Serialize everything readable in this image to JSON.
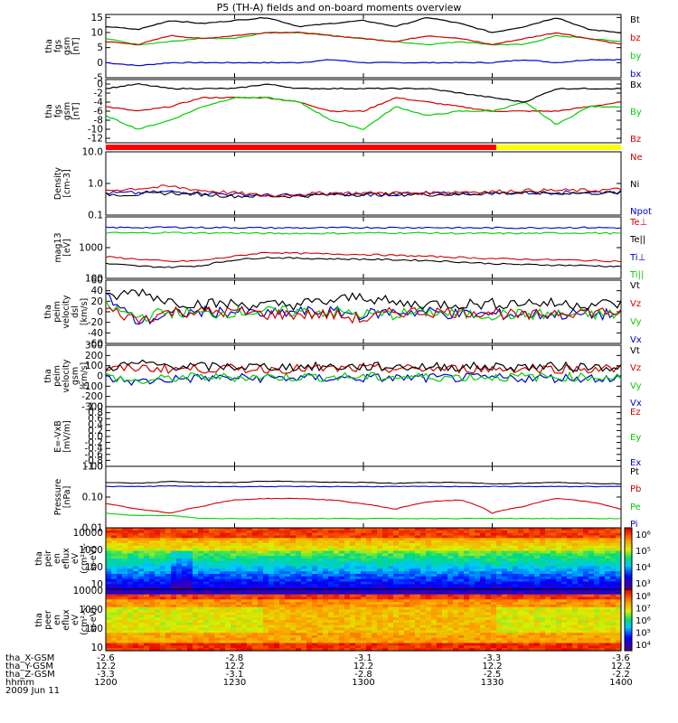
{
  "title": "P5 (TH-A) fields and on-board moments overview",
  "colors": {
    "black": "#000000",
    "red": "#d00000",
    "green": "#00d000",
    "blue": "#0000d0",
    "yellow": "#ffff00",
    "bar_red": "#ff0000"
  },
  "panels": [
    {
      "id": "fgs1",
      "ylabel": [
        "tha",
        "fgs",
        "gsm",
        "[nT]"
      ],
      "ylim": [
        -5,
        16
      ],
      "log": false,
      "ticks": [
        "15",
        "10",
        "5",
        "0",
        "-5"
      ],
      "tickvals": [
        15,
        10,
        5,
        0,
        -5
      ],
      "legend": [
        {
          "text": "Bt",
          "color": "#000000"
        },
        {
          "text": "bz",
          "color": "#d00000"
        },
        {
          "text": "by",
          "color": "#00d000"
        },
        {
          "text": "bx",
          "color": "#0000d0"
        }
      ]
    },
    {
      "id": "fgs2",
      "ylabel": [
        "tha",
        "fgs",
        "gsm",
        "[nT]"
      ],
      "ylim": [
        -13,
        1
      ],
      "log": false,
      "ticks": [
        "0",
        "-2",
        "-4",
        "-6",
        "-8",
        "-10",
        "-12"
      ],
      "tickvals": [
        0,
        -2,
        -4,
        -6,
        -8,
        -10,
        -12
      ],
      "legend": [
        {
          "text": "Bx",
          "color": "#000000"
        },
        {
          "text": "By",
          "color": "#00d000"
        },
        {
          "text": "Bz",
          "color": "#d00000"
        }
      ]
    },
    {
      "id": "density",
      "ylabel": [
        "Density",
        "[cm-3]"
      ],
      "ylim": [
        0.1,
        10
      ],
      "log": true,
      "ticks": [
        "10.0",
        "1.0",
        "0.1"
      ],
      "tickvals": [
        10,
        1,
        0.1
      ],
      "legend": [
        {
          "text": "Ne",
          "color": "#d00000"
        },
        {
          "text": "Ni",
          "color": "#000000"
        },
        {
          "text": "Npot",
          "color": "#0000d0"
        }
      ]
    },
    {
      "id": "temp",
      "ylabel": [
        "mag13",
        "[eV]"
      ],
      "ylim": [
        100,
        10000
      ],
      "log": true,
      "ticks": [
        "1000",
        "100"
      ],
      "tickvals": [
        1000,
        100
      ],
      "legend": [
        {
          "text": "Te⊥",
          "color": "#d00000"
        },
        {
          "text": "Te||",
          "color": "#000000"
        },
        {
          "text": "Ti⊥",
          "color": "#0000d0"
        },
        {
          "text": "Ti||",
          "color": "#00d000"
        }
      ]
    },
    {
      "id": "vel1",
      "ylabel": [
        "tha",
        "peim",
        "velocity",
        "dsl",
        "[km/s]"
      ],
      "ylim": [
        -60,
        60
      ],
      "log": false,
      "ticks": [
        "60",
        "40",
        "20",
        "0",
        "-20",
        "-40",
        "-60"
      ],
      "tickvals": [
        60,
        40,
        20,
        0,
        -20,
        -40,
        -60
      ],
      "legend": [
        {
          "text": "Vt",
          "color": "#000000"
        },
        {
          "text": "Vz",
          "color": "#d00000"
        },
        {
          "text": "Vy",
          "color": "#00d000"
        },
        {
          "text": "Vx",
          "color": "#0000d0"
        }
      ]
    },
    {
      "id": "vel2",
      "ylabel": [
        "tha",
        "peim",
        "velocity",
        "gsm",
        "[km/s]"
      ],
      "ylim": [
        -300,
        300
      ],
      "log": false,
      "ticks": [
        "300",
        "200",
        "100",
        "0",
        "-100",
        "-200",
        "-300"
      ],
      "tickvals": [
        300,
        200,
        100,
        0,
        -100,
        -200,
        -300
      ],
      "legend": [
        {
          "text": "Vt",
          "color": "#000000"
        },
        {
          "text": "Vz",
          "color": "#d00000"
        },
        {
          "text": "Vy",
          "color": "#00d000"
        },
        {
          "text": "Vx",
          "color": "#0000d0"
        }
      ]
    },
    {
      "id": "efield",
      "ylabel": [
        "E=-VxB",
        "[mV/m]"
      ],
      "ylim": [
        -1,
        1
      ],
      "log": false,
      "ticks": [
        "1.0",
        "0.8",
        "0.6",
        "0.4",
        "0.2",
        "0.0",
        "-0.2",
        "-0.4",
        "-0.6",
        "-0.8",
        "-1.0"
      ],
      "tickvals": [
        1,
        0.8,
        0.6,
        0.4,
        0.2,
        0,
        -0.2,
        -0.4,
        -0.6,
        -0.8,
        -1
      ],
      "legend": [
        {
          "text": "Ez",
          "color": "#d00000"
        },
        {
          "text": "Ey",
          "color": "#00d000"
        },
        {
          "text": "Ex",
          "color": "#0000d0"
        }
      ]
    },
    {
      "id": "pressure",
      "ylabel": [
        "Pressure",
        "[nPa]"
      ],
      "ylim": [
        0.01,
        1
      ],
      "log": true,
      "ticks": [
        "1.00",
        "0.10",
        "0.01"
      ],
      "tickvals": [
        1,
        0.1,
        0.01
      ],
      "legend": [
        {
          "text": "Pt",
          "color": "#000000"
        },
        {
          "text": "Pb",
          "color": "#d00000"
        },
        {
          "text": "Pe",
          "color": "#00d000"
        },
        {
          "text": "Pi",
          "color": "#0000d0"
        }
      ]
    },
    {
      "id": "ion_spec",
      "ylabel": [
        "tha",
        "peir",
        "en",
        "eflux",
        "eV",
        "(cm²-s-",
        "sr-eV)"
      ],
      "ylim": [
        5,
        20000
      ],
      "log": true,
      "ticks": [
        "10000",
        "1000",
        "100",
        "10"
      ],
      "tickvals": [
        10000,
        1000,
        100,
        10
      ],
      "cbar": [
        "10⁶",
        "10⁵",
        "10⁴",
        "10³"
      ]
    },
    {
      "id": "ele_spec",
      "ylabel": [
        "tha",
        "peer",
        "en",
        "eflux",
        "eV",
        "(cm²-s-",
        "sr-eV)"
      ],
      "ylim": [
        7,
        12000
      ],
      "log": true,
      "ticks": [
        "10000",
        "1000",
        "100",
        "10"
      ],
      "tickvals": [
        10000,
        1000,
        100,
        10
      ],
      "cbar": [
        "10⁸",
        "10⁷",
        "10⁶",
        "10⁵",
        "10⁴"
      ]
    }
  ],
  "chart_data": {
    "type": "line",
    "title": "P5 (TH-A) fields and on-board moments overview",
    "xlabel": "hhmm",
    "date": "2009 Jun 11",
    "x_ticks": [
      "1200",
      "1230",
      "1300",
      "1330",
      "1400"
    ],
    "x_range": [
      "1200",
      "1400"
    ],
    "position_rows": [
      {
        "label": "tha_X-GSM",
        "values": [
          "-2.6",
          "-2.8",
          "-3.1",
          "-3.3",
          "-3.6"
        ]
      },
      {
        "label": "tha_Y-GSM",
        "values": [
          "12.2",
          "12.2",
          "12.2",
          "12.2",
          "12.2"
        ]
      },
      {
        "label": "tha_Z-GSM",
        "values": [
          "-3.3",
          "-3.1",
          "-2.8",
          "-2.5",
          "-2.2"
        ]
      }
    ],
    "series_fgs1": [
      {
        "name": "Bt",
        "values": [
          12,
          11,
          14,
          13,
          14,
          15,
          12,
          13,
          14,
          12,
          15,
          13,
          10,
          12,
          15,
          11,
          10
        ]
      },
      {
        "name": "bz",
        "values": [
          7,
          6,
          9,
          8,
          9,
          10,
          10,
          9,
          8,
          7,
          9,
          8,
          6,
          8,
          10,
          8,
          6
        ]
      },
      {
        "name": "by",
        "values": [
          8,
          6,
          7,
          8,
          8,
          10,
          10,
          9,
          8,
          7,
          6,
          7,
          6,
          6,
          9,
          8,
          7
        ]
      },
      {
        "name": "bx",
        "values": [
          0,
          -1,
          0,
          0,
          0,
          0,
          0,
          1,
          0,
          0,
          0,
          0,
          0,
          1,
          0,
          1,
          1
        ]
      }
    ],
    "series_fgs2": [
      {
        "name": "Bx",
        "values": [
          -1,
          0,
          -1,
          -1,
          -1,
          0,
          -1,
          -1,
          -1,
          -1,
          -1,
          -2,
          -3,
          -4,
          -1,
          -1,
          -1
        ]
      },
      {
        "name": "By",
        "values": [
          -7,
          -10,
          -8,
          -5,
          -3,
          -3,
          -4,
          -8,
          -10,
          -5,
          -7,
          -6,
          -6,
          -4,
          -9,
          -5,
          -5
        ]
      },
      {
        "name": "Bz",
        "values": [
          -5,
          -6,
          -5,
          -3,
          -3,
          -3,
          -4,
          -6,
          -6,
          -3,
          -4,
          -5,
          -6,
          -6,
          -6,
          -5,
          -4
        ]
      }
    ],
    "series_density": [
      {
        "name": "Ne",
        "values": [
          0.6,
          0.7,
          0.8,
          0.6,
          0.5,
          0.4,
          0.45,
          0.5,
          0.5,
          0.5,
          0.5,
          0.55,
          0.55,
          0.6,
          0.6,
          0.6,
          0.65
        ]
      },
      {
        "name": "Ni",
        "values": [
          0.45,
          0.45,
          0.5,
          0.45,
          0.4,
          0.4,
          0.4,
          0.45,
          0.45,
          0.45,
          0.45,
          0.45,
          0.5,
          0.5,
          0.5,
          0.5,
          0.5
        ]
      },
      {
        "name": "Npot",
        "values": [
          0.5,
          0.5,
          0.55,
          0.5,
          0.45,
          0.42,
          0.42,
          0.45,
          0.45,
          0.45,
          0.48,
          0.48,
          0.5,
          0.5,
          0.52,
          0.52,
          0.55
        ]
      }
    ],
    "series_temp": [
      {
        "name": "Te⊥",
        "values": [
          500,
          420,
          350,
          380,
          520,
          700,
          650,
          620,
          600,
          560,
          520,
          480,
          440,
          420,
          400,
          380,
          360
        ]
      },
      {
        "name": "Te||",
        "values": [
          300,
          250,
          230,
          260,
          400,
          480,
          450,
          430,
          420,
          400,
          380,
          340,
          300,
          280,
          270,
          260,
          240
        ]
      },
      {
        "name": "Ti⊥",
        "values": [
          4500,
          4500,
          4600,
          4500,
          4500,
          4400,
          4400,
          4400,
          4500,
          4500,
          4500,
          4400,
          4400,
          4400,
          4500,
          4500,
          4400
        ]
      },
      {
        "name": "Ti||",
        "values": [
          3000,
          3000,
          3100,
          3000,
          3000,
          2900,
          2900,
          2900,
          3000,
          3000,
          3000,
          2900,
          2900,
          2900,
          3000,
          3000,
          2900
        ]
      }
    ],
    "series_vel1": [
      {
        "name": "Vt",
        "values": [
          25,
          40,
          20,
          15,
          15,
          12,
          15,
          20,
          30,
          15,
          15,
          15,
          15,
          18,
          15,
          15,
          15
        ]
      },
      {
        "name": "Vz",
        "values": [
          5,
          -15,
          0,
          0,
          0,
          -5,
          -5,
          -5,
          -15,
          0,
          0,
          0,
          0,
          -10,
          0,
          0,
          0
        ]
      },
      {
        "name": "Vy",
        "values": [
          10,
          -10,
          0,
          -5,
          0,
          0,
          0,
          0,
          -5,
          -5,
          0,
          -5,
          -5,
          -5,
          -5,
          -5,
          -5
        ]
      },
      {
        "name": "Vx",
        "values": [
          30,
          -20,
          -5,
          0,
          0,
          -5,
          0,
          0,
          -5,
          0,
          0,
          -5,
          -5,
          -5,
          -5,
          -5,
          -5
        ]
      }
    ],
    "series_vel2": [
      {
        "name": "Vt",
        "values": [
          80,
          120,
          100,
          90,
          90,
          90,
          90,
          90,
          90,
          90,
          90,
          90,
          90,
          90,
          90,
          90,
          90
        ]
      },
      {
        "name": "Vz",
        "values": [
          60,
          80,
          70,
          70,
          70,
          70,
          70,
          70,
          70,
          70,
          70,
          70,
          70,
          70,
          70,
          70,
          70
        ]
      },
      {
        "name": "Vy",
        "values": [
          0,
          -60,
          -20,
          -10,
          -10,
          -10,
          -10,
          -10,
          -10,
          -10,
          -10,
          -10,
          -10,
          -10,
          -10,
          -10,
          -10
        ]
      },
      {
        "name": "Vx",
        "values": [
          -20,
          -60,
          -30,
          -20,
          -20,
          -20,
          -20,
          -20,
          -20,
          -20,
          -20,
          -20,
          -20,
          -20,
          -20,
          -20,
          -20
        ]
      }
    ],
    "series_pressure": [
      {
        "name": "Pt",
        "values": [
          0.3,
          0.28,
          0.32,
          0.3,
          0.3,
          0.33,
          0.32,
          0.3,
          0.3,
          0.28,
          0.3,
          0.3,
          0.27,
          0.28,
          0.3,
          0.28,
          0.27
        ]
      },
      {
        "name": "Pb",
        "values": [
          0.06,
          0.04,
          0.03,
          0.05,
          0.08,
          0.09,
          0.09,
          0.08,
          0.06,
          0.04,
          0.07,
          0.08,
          0.03,
          0.05,
          0.09,
          0.07,
          0.04
        ]
      },
      {
        "name": "Pe",
        "values": [
          0.03,
          0.025,
          0.025,
          0.02,
          0.02,
          0.02,
          0.02,
          0.02,
          0.02,
          0.02,
          0.02,
          0.02,
          0.02,
          0.02,
          0.02,
          0.02,
          0.02
        ]
      },
      {
        "name": "Pi",
        "values": [
          0.22,
          0.22,
          0.23,
          0.22,
          0.22,
          0.22,
          0.22,
          0.22,
          0.22,
          0.22,
          0.22,
          0.22,
          0.22,
          0.22,
          0.22,
          0.22,
          0.22
        ]
      }
    ]
  }
}
